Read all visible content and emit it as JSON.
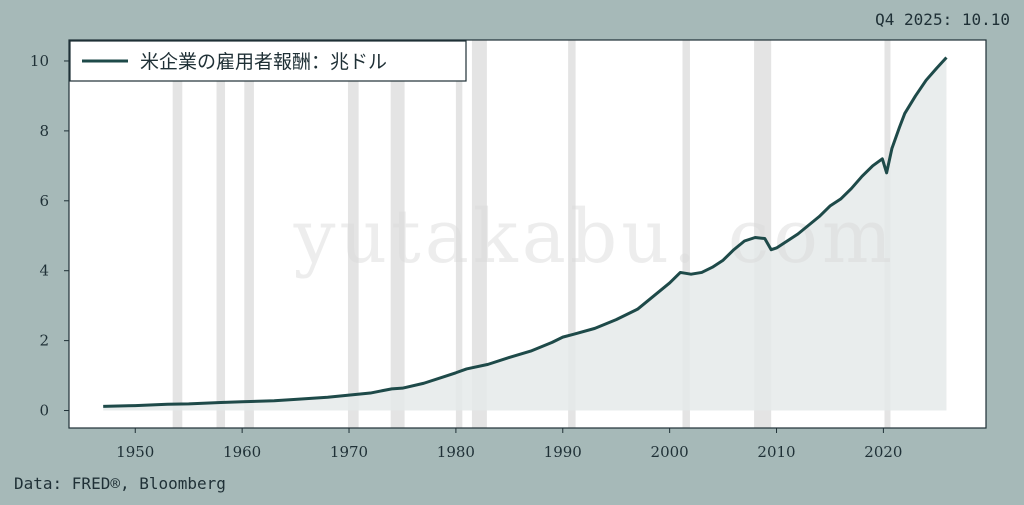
{
  "corner_label": "Q4 2025: 10.10",
  "source": "Data: FRED®, Bloomberg",
  "watermark": "yutakabu. com",
  "colors": {
    "background": "#a6b9b8",
    "plot_bg": "#ffffff",
    "line": "#1e4a49",
    "area": "#e5eaea",
    "recession": "#e4e4e4"
  },
  "chart_data": {
    "type": "line",
    "title": "",
    "xlabel": "",
    "ylabel": "",
    "legend": {
      "position": "top-left",
      "entries": [
        "米企業の雇用者報酬：兆ドル"
      ]
    },
    "xlim": [
      1943.8,
      2029.6
    ],
    "ylim": [
      -0.5,
      10.6
    ],
    "x_ticks": [
      1950,
      1960,
      1970,
      1980,
      1990,
      2000,
      2010,
      2020
    ],
    "y_ticks": [
      0,
      2,
      4,
      6,
      8,
      10
    ],
    "grid": false,
    "area_fill": true,
    "recessions": [
      [
        1953.5,
        1954.4
      ],
      [
        1957.6,
        1958.4
      ],
      [
        1960.2,
        1961.1
      ],
      [
        1969.9,
        1970.9
      ],
      [
        1973.9,
        1975.2
      ],
      [
        1980.0,
        1980.6
      ],
      [
        1981.5,
        1982.9
      ],
      [
        1990.5,
        1991.2
      ],
      [
        2001.2,
        2001.9
      ],
      [
        2007.9,
        2009.5
      ],
      [
        2020.1,
        2020.5
      ]
    ],
    "series": [
      {
        "name": "米企業の雇用者報酬：兆ドル",
        "x": [
          1947,
          1950,
          1953,
          1955,
          1958,
          1960,
          1963,
          1965,
          1968,
          1970,
          1972,
          1974,
          1975,
          1977,
          1979,
          1980,
          1981,
          1983,
          1985,
          1987,
          1989,
          1990,
          1991,
          1993,
          1995,
          1997,
          1999,
          2000,
          2001,
          2002,
          2003,
          2004,
          2005,
          2006,
          2007,
          2008,
          2008.9,
          2009.5,
          2010,
          2011,
          2012,
          2013,
          2014,
          2015,
          2016,
          2017,
          2018,
          2019,
          2019.9,
          2020.3,
          2020.8,
          2021.5,
          2022,
          2023,
          2024,
          2025,
          2025.9
        ],
        "values": [
          0.12,
          0.14,
          0.18,
          0.19,
          0.23,
          0.25,
          0.28,
          0.32,
          0.38,
          0.44,
          0.5,
          0.62,
          0.64,
          0.78,
          0.98,
          1.08,
          1.19,
          1.32,
          1.52,
          1.7,
          1.95,
          2.1,
          2.18,
          2.35,
          2.6,
          2.9,
          3.4,
          3.65,
          3.95,
          3.9,
          3.95,
          4.1,
          4.3,
          4.6,
          4.85,
          4.95,
          4.92,
          4.6,
          4.65,
          4.85,
          5.05,
          5.3,
          5.55,
          5.85,
          6.05,
          6.35,
          6.7,
          7.0,
          7.2,
          6.8,
          7.5,
          8.1,
          8.5,
          9.0,
          9.45,
          9.8,
          10.1
        ]
      }
    ]
  }
}
